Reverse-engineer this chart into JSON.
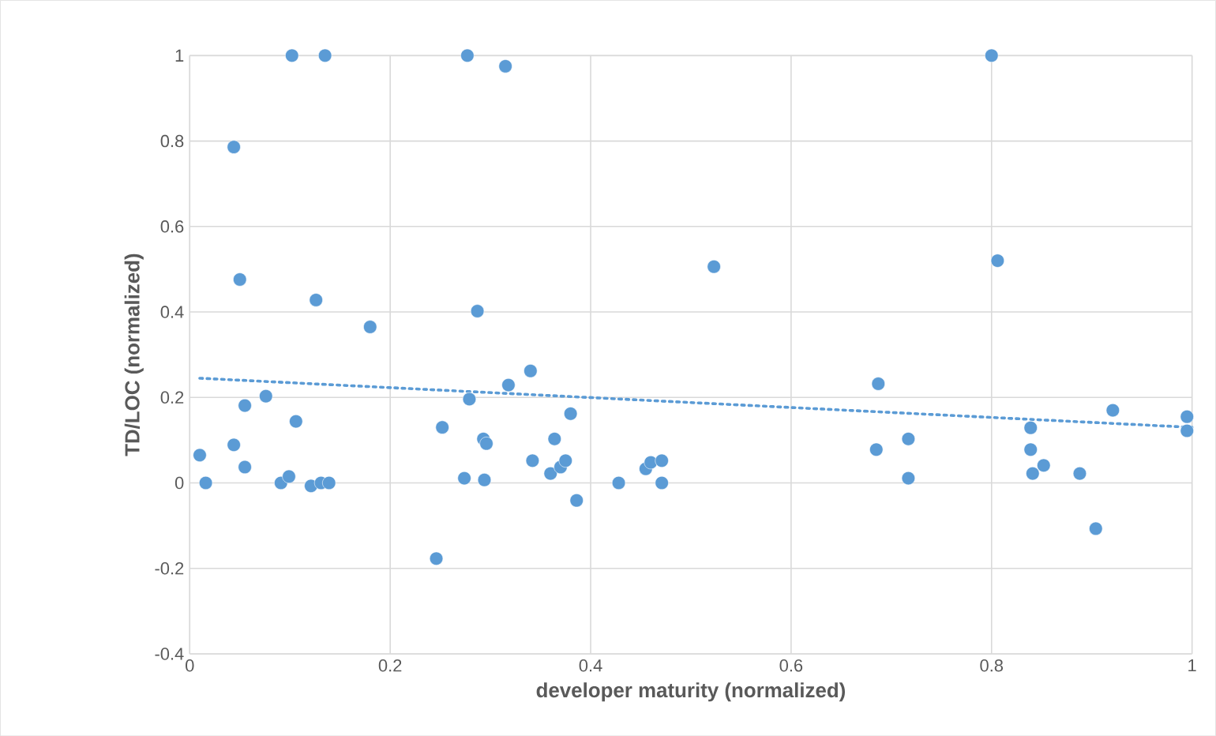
{
  "chart_data": {
    "type": "scatter",
    "xlabel": "developer maturity (normalized)",
    "ylabel": "TD/LOC (normalized)",
    "xlim": [
      0,
      1
    ],
    "ylim": [
      -0.4,
      1
    ],
    "xticks": [
      0,
      0.2,
      0.4,
      0.6,
      0.8,
      1
    ],
    "yticks": [
      -0.4,
      -0.2,
      0,
      0.2,
      0.4,
      0.6,
      0.8,
      1
    ],
    "grid": true,
    "marker": "circle",
    "series": [
      {
        "color": "#5b9bd5",
        "x": [
          0.102,
          0.135,
          0.277,
          0.315,
          0.8,
          0.044,
          0.05,
          0.016,
          0.01,
          0.044,
          0.055,
          0.055,
          0.076,
          0.106,
          0.091,
          0.099,
          0.121,
          0.131,
          0.139,
          0.126,
          0.18,
          0.252,
          0.246,
          0.274,
          0.279,
          0.287,
          0.293,
          0.296,
          0.294,
          0.318,
          0.34,
          0.342,
          0.364,
          0.36,
          0.37,
          0.375,
          0.38,
          0.386,
          0.428,
          0.455,
          0.46,
          0.471,
          0.471,
          0.523,
          0.685,
          0.687,
          0.717,
          0.717,
          0.806,
          0.839,
          0.839,
          0.841,
          0.852,
          0.888,
          0.904,
          0.921,
          0.995,
          0.995
        ],
        "values": [
          1,
          1,
          1,
          0.975,
          1,
          0.786,
          0.476,
          0,
          0.065,
          0.089,
          0.181,
          0.037,
          0.203,
          0.144,
          0,
          0.015,
          -0.007,
          0,
          0,
          0.428,
          0.365,
          0.13,
          -0.177,
          0.011,
          0.196,
          0.402,
          0.103,
          0.092,
          0.007,
          0.229,
          0.262,
          0.052,
          0.103,
          0.022,
          0.037,
          0.052,
          0.162,
          -0.041,
          0,
          0.033,
          0.048,
          0.052,
          0,
          0.506,
          0.078,
          0.232,
          0.103,
          0.011,
          0.52,
          0.129,
          0.078,
          0.022,
          0.041,
          0.022,
          -0.107,
          0.17,
          0.155,
          0.122
        ]
      },
      {
        "type": "line",
        "color": "#5b9bd5",
        "line_style": "dotted",
        "marker": "none",
        "x": [
          0.01,
          1
        ],
        "values": [
          0.245,
          0.13
        ]
      }
    ]
  }
}
